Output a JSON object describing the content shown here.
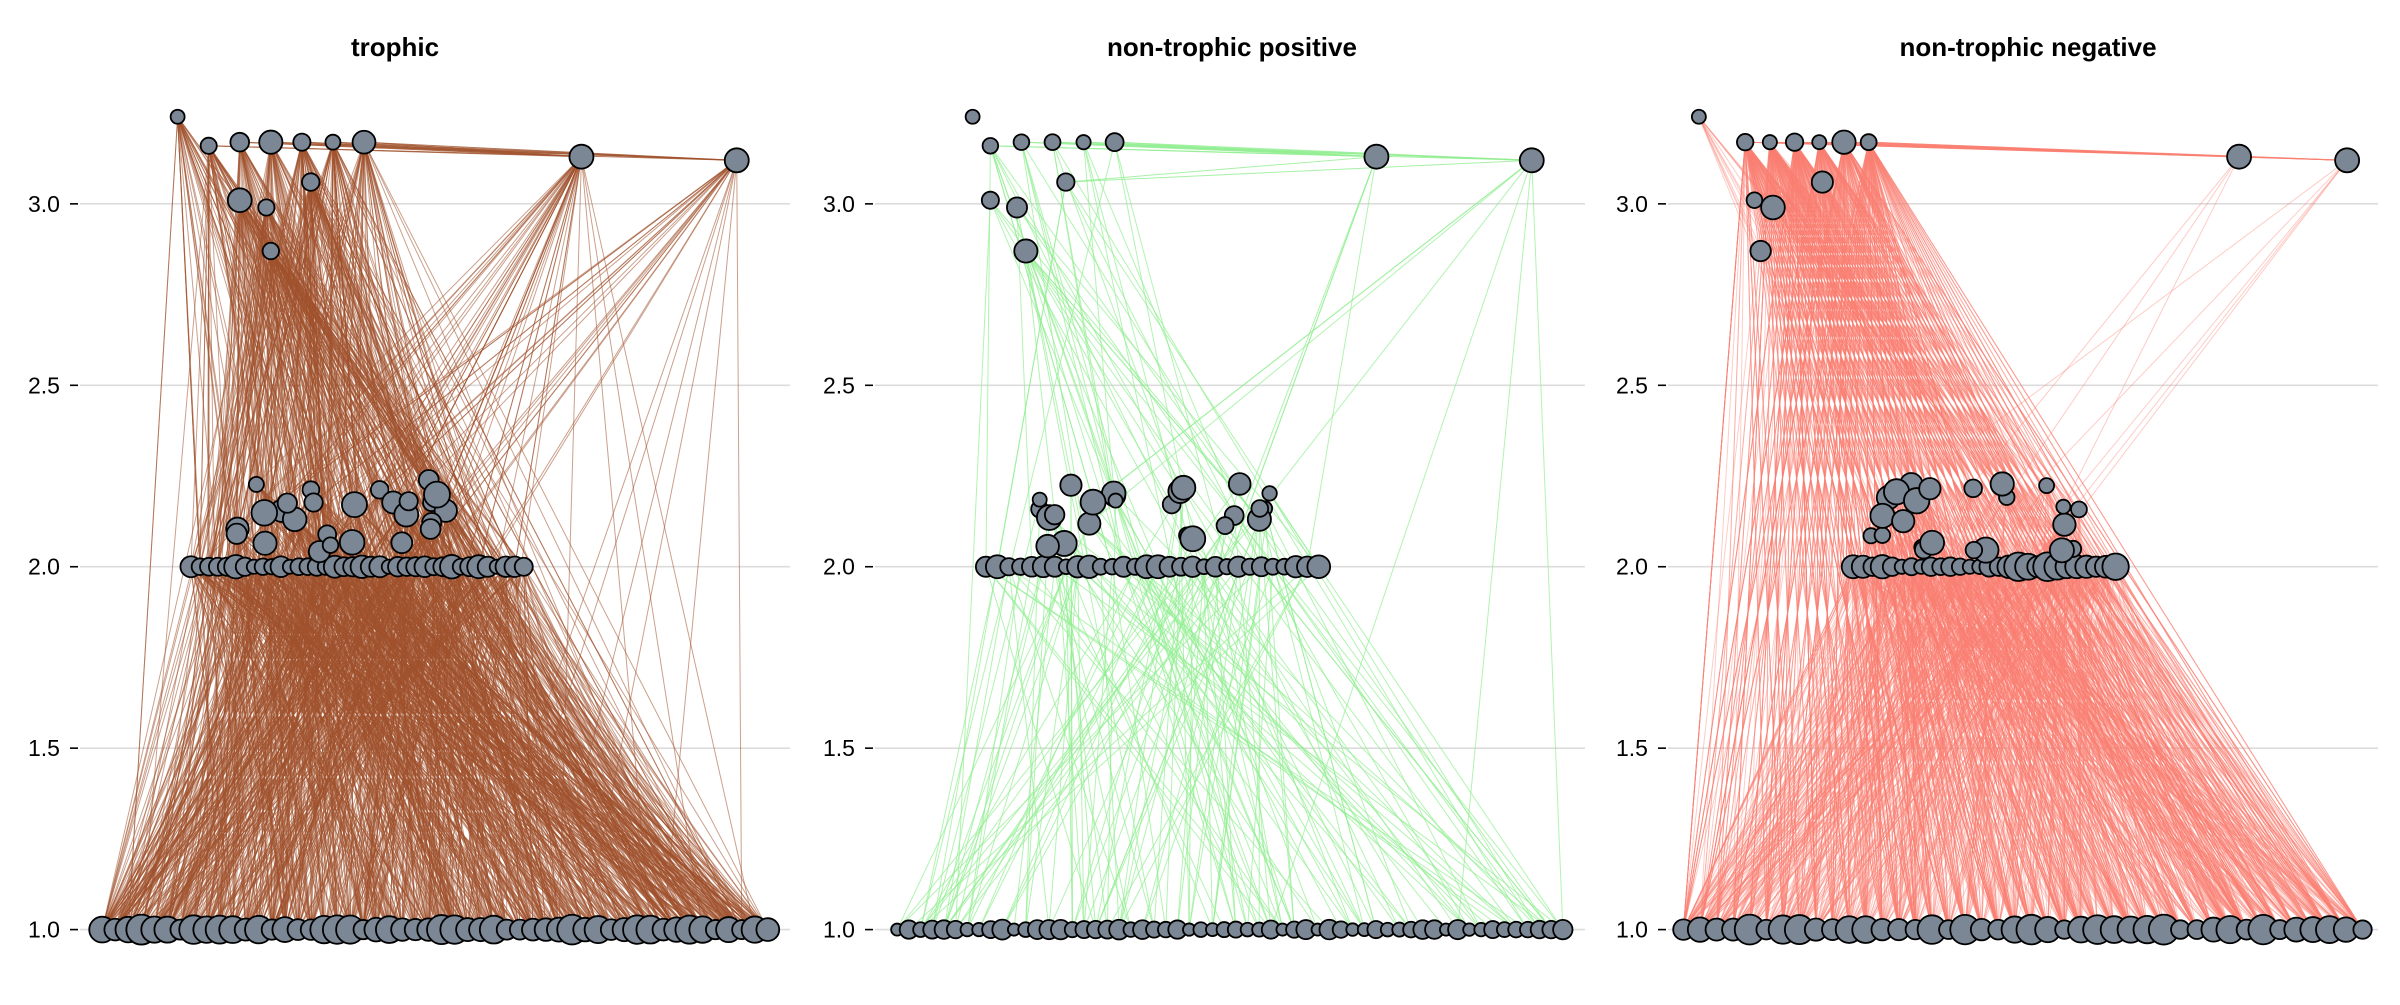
{
  "chart_data": [
    {
      "type": "network",
      "title": "trophic",
      "ylim": [
        0.93,
        3.3
      ],
      "yticks": [
        1.0,
        1.5,
        2.0,
        2.5,
        3.0
      ],
      "ytick_labels": [
        "1.0",
        "1.5",
        "2.0",
        "2.5",
        "3.0"
      ],
      "grid": true,
      "edge_color": "#a0522d",
      "node_color": "#7b8794",
      "levels": [
        {
          "trophic_level": 1.0,
          "node_count": 52
        },
        {
          "trophic_level": 2.0,
          "node_count": 38
        },
        {
          "trophic_level": 2.15,
          "node_count": 26
        },
        {
          "trophic_level": 3.0,
          "node_count": 12
        }
      ],
      "top_nodes": [
        {
          "x": -0.38,
          "y": 3.24
        },
        {
          "x": 0.53,
          "y": 3.13
        },
        {
          "x": 0.88,
          "y": 3.12
        },
        {
          "x": -0.31,
          "y": 3.16
        },
        {
          "x": -0.24,
          "y": 3.17
        },
        {
          "x": -0.17,
          "y": 3.17
        },
        {
          "x": -0.1,
          "y": 3.17
        },
        {
          "x": -0.03,
          "y": 3.17
        },
        {
          "x": 0.04,
          "y": 3.17
        },
        {
          "x": -0.08,
          "y": 3.06
        },
        {
          "x": -0.24,
          "y": 3.01
        },
        {
          "x": -0.18,
          "y": 2.99
        },
        {
          "x": -0.17,
          "y": 2.87
        }
      ]
    },
    {
      "type": "network",
      "title": "non-trophic positive",
      "ylim": [
        0.93,
        3.3
      ],
      "yticks": [
        1.0,
        1.5,
        2.0,
        2.5,
        3.0
      ],
      "ytick_labels": [
        "1.0",
        "1.5",
        "2.0",
        "2.5",
        "3.0"
      ],
      "grid": true,
      "edge_color": "#90ee90",
      "node_color": "#7b8794",
      "levels": [
        {
          "trophic_level": 1.0,
          "node_count": 58
        },
        {
          "trophic_level": 2.0,
          "node_count": 30
        },
        {
          "trophic_level": 2.15,
          "node_count": 24
        },
        {
          "trophic_level": 3.0,
          "node_count": 12
        }
      ],
      "top_nodes": [
        {
          "x": -0.38,
          "y": 3.24
        },
        {
          "x": 0.53,
          "y": 3.13
        },
        {
          "x": 0.88,
          "y": 3.12
        },
        {
          "x": -0.34,
          "y": 3.16
        },
        {
          "x": -0.27,
          "y": 3.17
        },
        {
          "x": -0.2,
          "y": 3.17
        },
        {
          "x": -0.13,
          "y": 3.17
        },
        {
          "x": -0.06,
          "y": 3.17
        },
        {
          "x": -0.17,
          "y": 3.06
        },
        {
          "x": -0.34,
          "y": 3.01
        },
        {
          "x": -0.28,
          "y": 2.99
        },
        {
          "x": -0.26,
          "y": 2.87
        }
      ]
    },
    {
      "type": "network",
      "title": "non-trophic negative",
      "ylim": [
        0.93,
        3.3
      ],
      "yticks": [
        1.0,
        1.5,
        2.0,
        2.5,
        3.0
      ],
      "ytick_labels": [
        "1.0",
        "1.5",
        "2.0",
        "2.5",
        "3.0"
      ],
      "grid": true,
      "edge_color": "#fa8072",
      "node_color": "#7b8794",
      "levels": [
        {
          "trophic_level": 1.0,
          "node_count": 42
        },
        {
          "trophic_level": 2.0,
          "node_count": 28
        },
        {
          "trophic_level": 2.15,
          "node_count": 24
        },
        {
          "trophic_level": 3.0,
          "node_count": 12
        }
      ],
      "top_nodes": [
        {
          "x": -0.5,
          "y": 3.24
        },
        {
          "x": 1.25,
          "y": 3.13
        },
        {
          "x": 1.6,
          "y": 3.12
        },
        {
          "x": -0.35,
          "y": 3.17
        },
        {
          "x": -0.27,
          "y": 3.17
        },
        {
          "x": -0.19,
          "y": 3.17
        },
        {
          "x": -0.11,
          "y": 3.17
        },
        {
          "x": -0.03,
          "y": 3.17
        },
        {
          "x": 0.05,
          "y": 3.17
        },
        {
          "x": -0.1,
          "y": 3.06
        },
        {
          "x": -0.32,
          "y": 3.01
        },
        {
          "x": -0.26,
          "y": 2.99
        },
        {
          "x": -0.3,
          "y": 2.87
        }
      ]
    }
  ]
}
